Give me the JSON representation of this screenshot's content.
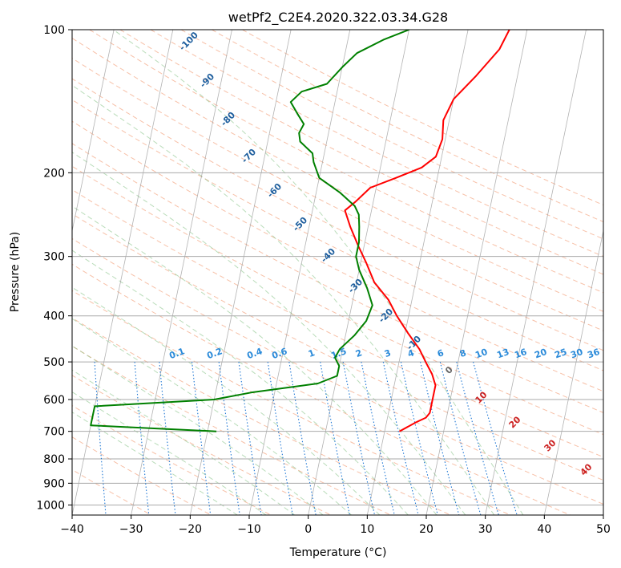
{
  "chart_data": {
    "type": "line",
    "subtype": "skew-t log-p",
    "title": "wetPf2_C2E4.2020.322.03.34.G28",
    "xlabel": "Temperature (°C)",
    "ylabel": "Pressure (hPa)",
    "xlim": [
      -40,
      50
    ],
    "ylim": [
      1050,
      100
    ],
    "y_scale": "log",
    "grid": true,
    "x_ticks": [
      "−40",
      "−30",
      "−20",
      "−10",
      "0",
      "10",
      "20",
      "30",
      "40",
      "50"
    ],
    "x_tick_values": [
      -40,
      -30,
      -20,
      -10,
      0,
      10,
      20,
      30,
      40,
      50
    ],
    "y_ticks": [
      "100",
      "200",
      "300",
      "400",
      "500",
      "600",
      "700",
      "800",
      "900",
      "1000"
    ],
    "y_tick_values": [
      100,
      200,
      300,
      400,
      500,
      600,
      700,
      800,
      900,
      1000
    ],
    "isotherm_labels": [
      "-100",
      "-90",
      "-80",
      "-70",
      "-60",
      "-50",
      "-40",
      "-30",
      "-20",
      "-10",
      "0",
      "10",
      "20",
      "30",
      "40"
    ],
    "isotherm_label_values": [
      -100,
      -90,
      -80,
      -70,
      -60,
      -50,
      -40,
      -30,
      -20,
      -10,
      0,
      10,
      20,
      30,
      40
    ],
    "mixing_ratio_labels": [
      "0.1",
      "0.2",
      "0.4",
      "0.6",
      "1",
      "1.5",
      "2",
      "3",
      "4",
      "6",
      "8",
      "10",
      "13",
      "16",
      "20",
      "25",
      "30",
      "36"
    ],
    "mixing_ratio_values": [
      0.1,
      0.2,
      0.4,
      0.6,
      1,
      1.5,
      2,
      3,
      4,
      6,
      8,
      10,
      13,
      16,
      20,
      25,
      30,
      36
    ],
    "series": [
      {
        "color": "#ff0000",
        "points": [
          {
            "p": 100,
            "t": 17
          },
          {
            "p": 110,
            "t": 16
          },
          {
            "p": 125,
            "t": 13
          },
          {
            "p": 140,
            "t": 10
          },
          {
            "p": 155,
            "t": 9
          },
          {
            "p": 170,
            "t": 9.5
          },
          {
            "p": 185,
            "t": 9
          },
          {
            "p": 195,
            "t": 7
          },
          {
            "p": 205,
            "t": 3
          },
          {
            "p": 215,
            "t": -1
          },
          {
            "p": 230,
            "t": -3
          },
          {
            "p": 240,
            "t": -4.5
          },
          {
            "p": 260,
            "t": -3
          },
          {
            "p": 285,
            "t": -1
          },
          {
            "p": 310,
            "t": 1
          },
          {
            "p": 340,
            "t": 3
          },
          {
            "p": 370,
            "t": 6
          },
          {
            "p": 400,
            "t": 8
          },
          {
            "p": 435,
            "t": 10.5
          },
          {
            "p": 470,
            "t": 13
          },
          {
            "p": 500,
            "t": 14.5
          },
          {
            "p": 530,
            "t": 16
          },
          {
            "p": 560,
            "t": 17
          },
          {
            "p": 600,
            "t": 17
          },
          {
            "p": 640,
            "t": 17
          },
          {
            "p": 655,
            "t": 16.5
          },
          {
            "p": 670,
            "t": 15
          },
          {
            "p": 700,
            "t": 12.5
          }
        ]
      },
      {
        "color": "#008000",
        "points": [
          {
            "p": 100,
            "t": 0
          },
          {
            "p": 105,
            "t": -4
          },
          {
            "p": 112,
            "t": -8
          },
          {
            "p": 120,
            "t": -10
          },
          {
            "p": 130,
            "t": -12
          },
          {
            "p": 135,
            "t": -16
          },
          {
            "p": 142,
            "t": -17.5
          },
          {
            "p": 150,
            "t": -16
          },
          {
            "p": 158,
            "t": -14.5
          },
          {
            "p": 165,
            "t": -15
          },
          {
            "p": 172,
            "t": -14.5
          },
          {
            "p": 182,
            "t": -12
          },
          {
            "p": 190,
            "t": -11.5
          },
          {
            "p": 205,
            "t": -10
          },
          {
            "p": 220,
            "t": -6
          },
          {
            "p": 235,
            "t": -3
          },
          {
            "p": 245,
            "t": -2
          },
          {
            "p": 260,
            "t": -1.5
          },
          {
            "p": 280,
            "t": -1
          },
          {
            "p": 300,
            "t": -1
          },
          {
            "p": 320,
            "t": 0
          },
          {
            "p": 350,
            "t": 2
          },
          {
            "p": 380,
            "t": 3.5
          },
          {
            "p": 410,
            "t": 3
          },
          {
            "p": 440,
            "t": 1.5
          },
          {
            "p": 470,
            "t": -0.5
          },
          {
            "p": 490,
            "t": -1
          },
          {
            "p": 510,
            "t": 0
          },
          {
            "p": 535,
            "t": 0
          },
          {
            "p": 555,
            "t": -3
          },
          {
            "p": 580,
            "t": -14
          },
          {
            "p": 600,
            "t": -20
          },
          {
            "p": 620,
            "t": -40
          },
          {
            "p": 680,
            "t": -40
          },
          {
            "p": 700,
            "t": -18.5
          }
        ]
      }
    ]
  }
}
